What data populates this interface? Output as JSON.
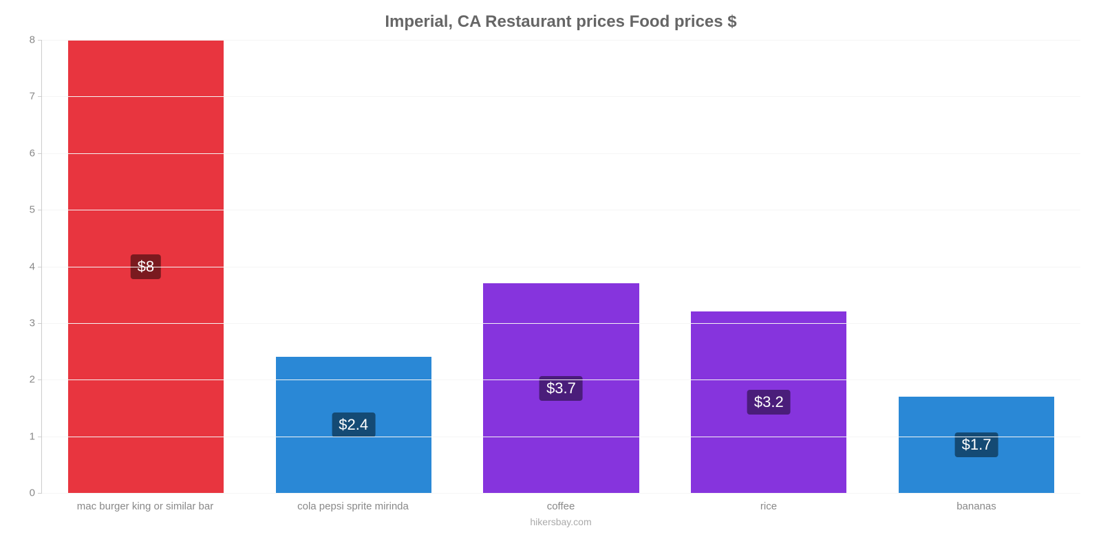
{
  "chart": {
    "type": "bar",
    "title": "Imperial, CA Restaurant prices Food prices $",
    "title_color": "#666666",
    "title_fontsize": 24,
    "background_color": "#ffffff",
    "grid_color": "#f5f5f5",
    "axis_color": "#cccccc",
    "label_color": "#888888",
    "categories": [
      "mac burger king or similar bar",
      "cola pepsi sprite mirinda",
      "coffee",
      "rice",
      "bananas"
    ],
    "values": [
      8,
      2.4,
      3.7,
      3.2,
      1.7
    ],
    "value_labels": [
      "$8",
      "$2.4",
      "$3.7",
      "$3.2",
      "$1.7"
    ],
    "bar_colors": [
      "#e8353f",
      "#2a88d6",
      "#8634dd",
      "#8634dd",
      "#2a88d6"
    ],
    "badge_colors": [
      "#7a1a1f",
      "#144a74",
      "#4a1d7a",
      "#4a1d7a",
      "#144a74"
    ],
    "ylim": [
      0,
      8
    ],
    "yticks": [
      0,
      1,
      2,
      3,
      4,
      5,
      6,
      7,
      8
    ],
    "bar_width_pct": 75,
    "label_fontsize": 15,
    "value_fontsize": 22,
    "credit": "hikersbay.com"
  }
}
